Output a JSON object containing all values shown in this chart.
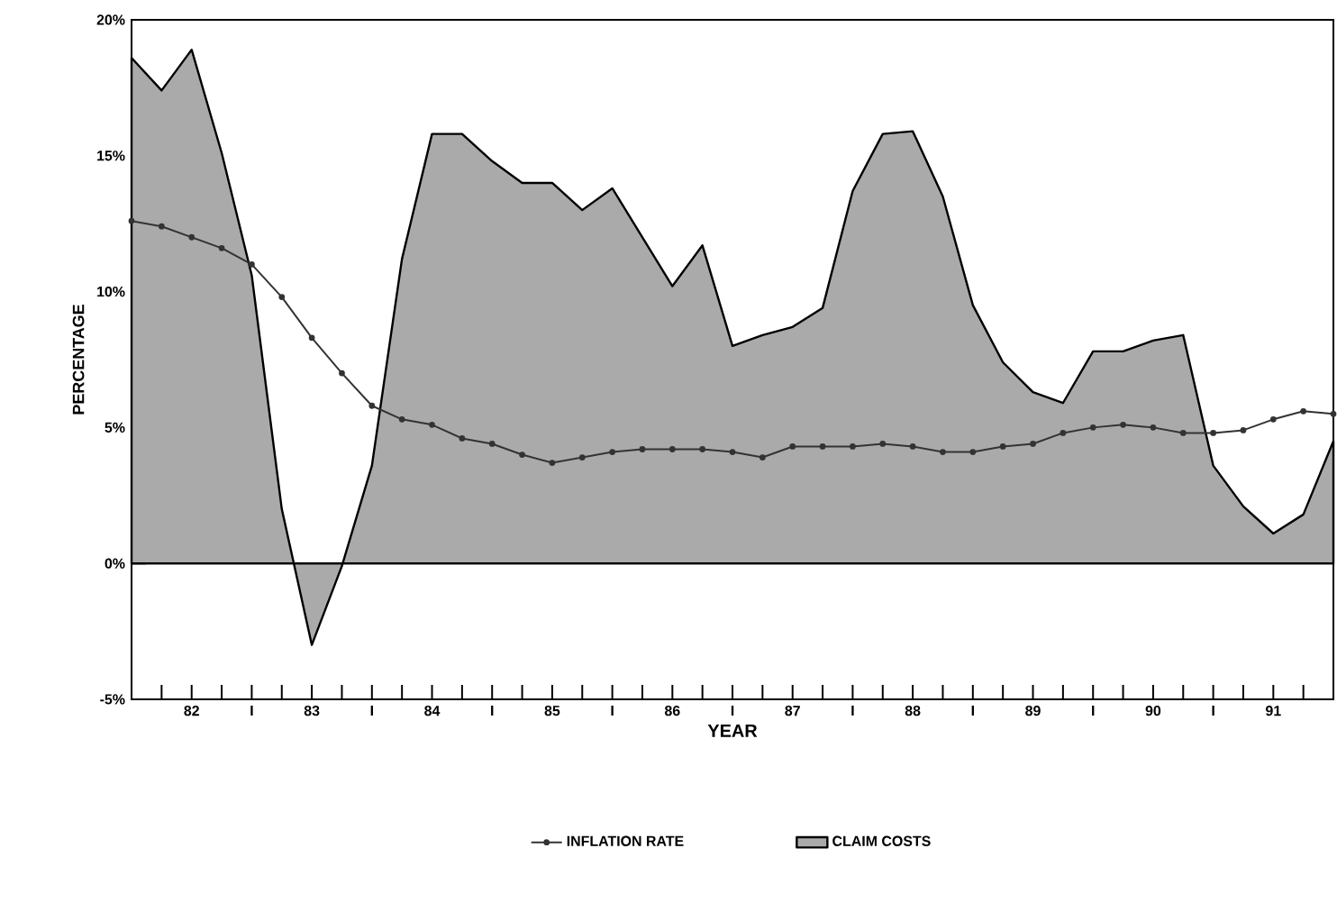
{
  "chart_data": {
    "type": "line",
    "xlabel": "YEAR",
    "ylabel": "PERCENTAGE",
    "xlim": [
      81.5,
      91.5
    ],
    "ylim": [
      -5,
      20
    ],
    "yticks": [
      {
        "value": -5,
        "label": "-5%"
      },
      {
        "value": 0,
        "label": "0%"
      },
      {
        "value": 5,
        "label": "5%"
      },
      {
        "value": 10,
        "label": "10%"
      },
      {
        "value": 15,
        "label": "15%"
      },
      {
        "value": 20,
        "label": "20%"
      }
    ],
    "xticks": [
      {
        "value": 81.75,
        "label": null
      },
      82,
      {
        "value": 82.25,
        "label": null
      },
      {
        "value": 82.5,
        "label": "I"
      },
      {
        "value": 82.75,
        "label": null
      },
      83,
      {
        "value": 83.25,
        "label": null
      },
      {
        "value": 83.5,
        "label": "I"
      },
      {
        "value": 83.75,
        "label": null
      },
      84,
      {
        "value": 84.25,
        "label": null
      },
      {
        "value": 84.5,
        "label": "I"
      },
      {
        "value": 84.75,
        "label": null
      },
      85,
      {
        "value": 85.25,
        "label": null
      },
      {
        "value": 85.5,
        "label": "I"
      },
      {
        "value": 85.75,
        "label": null
      },
      86,
      {
        "value": 86.25,
        "label": null
      },
      {
        "value": 86.5,
        "label": "I"
      },
      {
        "value": 86.75,
        "label": null
      },
      87,
      {
        "value": 87.25,
        "label": null
      },
      {
        "value": 87.5,
        "label": "I"
      },
      {
        "value": 87.75,
        "label": null
      },
      88,
      {
        "value": 88.25,
        "label": null
      },
      {
        "value": 88.5,
        "label": "I"
      },
      {
        "value": 88.75,
        "label": null
      },
      89,
      {
        "value": 89.25,
        "label": null
      },
      {
        "value": 89.5,
        "label": "I"
      },
      {
        "value": 89.75,
        "label": null
      },
      90,
      {
        "value": 90.25,
        "label": null
      },
      {
        "value": 90.5,
        "label": "I"
      },
      {
        "value": 90.75,
        "label": null
      },
      91,
      {
        "value": 91.25,
        "label": null
      }
    ],
    "x": [
      81.5,
      81.75,
      82,
      82.25,
      82.5,
      82.75,
      83,
      83.25,
      83.5,
      83.75,
      84,
      84.25,
      84.5,
      84.75,
      85,
      85.25,
      85.5,
      85.75,
      86,
      86.25,
      86.5,
      86.75,
      87,
      87.25,
      87.5,
      87.75,
      88,
      88.25,
      88.5,
      88.75,
      89,
      89.25,
      89.5,
      89.75,
      90,
      90.25,
      90.5,
      90.75,
      91,
      91.25,
      91.5
    ],
    "series": [
      {
        "name": "INFLATION RATE",
        "color": "#333333",
        "marker": "circle",
        "values": [
          12.6,
          12.4,
          12.0,
          11.6,
          11.0,
          9.8,
          8.3,
          7.0,
          5.8,
          5.3,
          5.1,
          4.6,
          4.4,
          4.0,
          3.7,
          3.9,
          4.1,
          4.2,
          4.2,
          4.2,
          4.1,
          3.9,
          4.3,
          4.3,
          4.3,
          4.4,
          4.3,
          4.1,
          4.1,
          4.3,
          4.4,
          4.8,
          5.0,
          5.1,
          5.0,
          4.8,
          4.8,
          4.9,
          5.3,
          5.6,
          5.5
        ]
      },
      {
        "name": "CLAIM COSTS",
        "type": "area",
        "color": "#aaaaaa",
        "values": [
          18.6,
          17.4,
          18.9,
          15.1,
          10.6,
          2.0,
          -3.0,
          -0.1,
          3.6,
          11.2,
          15.8,
          15.8,
          14.8,
          14.0,
          14.0,
          13.0,
          13.8,
          12.0,
          10.2,
          11.7,
          8.0,
          8.4,
          8.7,
          9.4,
          13.7,
          15.8,
          15.9,
          13.5,
          9.5,
          7.4,
          6.3,
          5.9,
          7.8,
          7.8,
          8.2,
          8.4,
          3.6,
          2.1,
          1.1,
          1.8,
          4.5
        ]
      }
    ],
    "ref_lines": [
      {
        "axis": "y",
        "value": 0
      }
    ],
    "legend": "bottom"
  }
}
